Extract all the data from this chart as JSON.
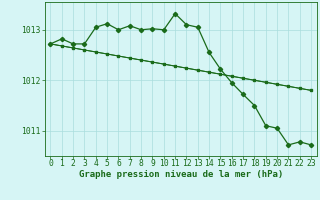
{
  "hours": [
    0,
    1,
    2,
    3,
    4,
    5,
    6,
    7,
    8,
    9,
    10,
    11,
    12,
    13,
    14,
    15,
    16,
    17,
    18,
    19,
    20,
    21,
    22,
    23
  ],
  "series1": [
    1012.72,
    1012.82,
    1012.72,
    1012.72,
    1013.05,
    1013.12,
    1013.0,
    1013.08,
    1013.0,
    1013.02,
    1013.0,
    1013.32,
    1013.1,
    1013.05,
    1012.55,
    1012.22,
    1011.95,
    1011.72,
    1011.5,
    1011.1,
    1011.05,
    1010.72,
    1010.78,
    1010.72
  ],
  "series2": [
    1012.72,
    1012.68,
    1012.64,
    1012.6,
    1012.56,
    1012.52,
    1012.48,
    1012.44,
    1012.4,
    1012.36,
    1012.32,
    1012.28,
    1012.24,
    1012.2,
    1012.16,
    1012.12,
    1012.08,
    1012.04,
    1012.0,
    1011.96,
    1011.92,
    1011.88,
    1011.84,
    1011.8
  ],
  "series3": [
    1012.72,
    1012.68,
    1012.64,
    1012.6,
    1012.56,
    1012.52,
    1012.48,
    1012.44,
    1012.4,
    1012.36,
    1012.32,
    1012.28,
    1012.24,
    1012.2,
    1012.16,
    1012.12,
    1012.08,
    1012.04,
    1012.0,
    1011.96,
    1011.92,
    1011.88,
    1011.84,
    1011.8
  ],
  "line_color": "#1a6b1a",
  "bg_color": "#d6f5f5",
  "grid_color": "#aadddd",
  "yticks": [
    1011,
    1012,
    1013
  ],
  "xlabel": "Graphe pression niveau de la mer (hPa)",
  "xlim": [
    -0.5,
    23.5
  ],
  "ylim": [
    1010.5,
    1013.55
  ],
  "xlabel_fontsize": 6.5,
  "tick_fontsize": 5.8
}
